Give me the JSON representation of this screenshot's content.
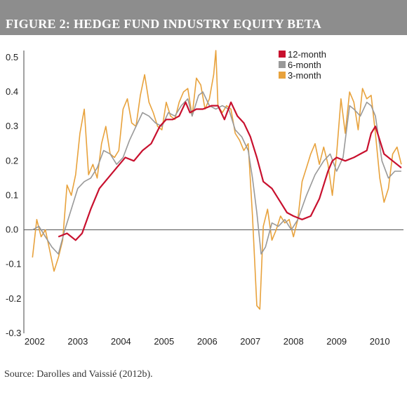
{
  "figure": {
    "title": "FIGURE 2: HEDGE FUND INDUSTRY EQUITY BETA",
    "source": "Source: Darolles and Vaissié (2012b)."
  },
  "chart_data": {
    "type": "line",
    "title": "FIGURE 2: HEDGE FUND INDUSTRY EQUITY BETA",
    "xlabel": "",
    "ylabel": "",
    "xlim": [
      2001.75,
      2010.55
    ],
    "ylim": [
      -0.3,
      0.52
    ],
    "y_ticks": [
      "0.5",
      "0.4",
      "0.3",
      "0.2",
      "0.1",
      "0.0",
      "-0.1",
      "-0.2",
      "-0.3"
    ],
    "y_tick_values": [
      0.5,
      0.4,
      0.3,
      0.2,
      0.1,
      0.0,
      -0.1,
      -0.2,
      -0.3
    ],
    "x_ticks": [
      "2002",
      "2003",
      "2004",
      "2005",
      "2006",
      "2007",
      "2008",
      "2009",
      "2010"
    ],
    "x_tick_values": [
      2002,
      2003,
      2004,
      2005,
      2006,
      2007,
      2008,
      2009,
      2010
    ],
    "zero_line": true,
    "legend_position": "top-right",
    "series": [
      {
        "name": "12-month",
        "color": "#c8102e",
        "x": [
          2002.55,
          2002.75,
          2002.95,
          2003.1,
          2003.3,
          2003.5,
          2003.7,
          2003.9,
          2004.1,
          2004.3,
          2004.5,
          2004.7,
          2004.9,
          2005.05,
          2005.2,
          2005.35,
          2005.5,
          2005.6,
          2005.75,
          2005.9,
          2006.1,
          2006.25,
          2006.4,
          2006.55,
          2006.7,
          2006.85,
          2007.0,
          2007.15,
          2007.3,
          2007.5,
          2007.7,
          2007.85,
          2008.0,
          2008.2,
          2008.4,
          2008.6,
          2008.8,
          2008.9,
          2009.0,
          2009.2,
          2009.4,
          2009.55,
          2009.7,
          2009.8,
          2009.9,
          2010.0,
          2010.1,
          2010.3,
          2010.5
        ],
        "values": [
          -0.02,
          -0.01,
          -0.03,
          -0.01,
          0.06,
          0.12,
          0.15,
          0.18,
          0.21,
          0.2,
          0.23,
          0.25,
          0.3,
          0.32,
          0.32,
          0.33,
          0.37,
          0.34,
          0.35,
          0.35,
          0.36,
          0.36,
          0.32,
          0.37,
          0.33,
          0.31,
          0.27,
          0.21,
          0.14,
          0.12,
          0.08,
          0.05,
          0.04,
          0.03,
          0.04,
          0.09,
          0.17,
          0.2,
          0.21,
          0.2,
          0.21,
          0.22,
          0.23,
          0.28,
          0.3,
          0.26,
          0.22,
          0.2,
          0.18
        ]
      },
      {
        "name": "6-month",
        "color": "#999999",
        "x": [
          2001.95,
          2002.1,
          2002.25,
          2002.4,
          2002.55,
          2002.7,
          2002.85,
          2003.0,
          2003.15,
          2003.3,
          2003.45,
          2003.6,
          2003.75,
          2003.9,
          2004.05,
          2004.2,
          2004.35,
          2004.5,
          2004.65,
          2004.8,
          2004.95,
          2005.1,
          2005.25,
          2005.4,
          2005.55,
          2005.65,
          2005.8,
          2005.9,
          2006.05,
          2006.2,
          2006.35,
          2006.5,
          2006.65,
          2006.8,
          2006.95,
          2007.05,
          2007.15,
          2007.25,
          2007.35,
          2007.5,
          2007.65,
          2007.8,
          2007.95,
          2008.1,
          2008.3,
          2008.5,
          2008.7,
          2008.85,
          2009.0,
          2009.15,
          2009.3,
          2009.4,
          2009.55,
          2009.7,
          2009.8,
          2009.9,
          2010.05,
          2010.2,
          2010.35,
          2010.5
        ],
        "values": [
          0.0,
          0.01,
          -0.02,
          -0.05,
          -0.07,
          0.0,
          0.06,
          0.12,
          0.14,
          0.15,
          0.18,
          0.23,
          0.22,
          0.19,
          0.21,
          0.26,
          0.3,
          0.34,
          0.33,
          0.31,
          0.3,
          0.34,
          0.33,
          0.36,
          0.38,
          0.33,
          0.39,
          0.4,
          0.36,
          0.35,
          0.36,
          0.35,
          0.29,
          0.27,
          0.23,
          0.15,
          0.05,
          -0.07,
          -0.05,
          0.02,
          0.01,
          0.03,
          0.0,
          0.03,
          0.1,
          0.16,
          0.2,
          0.22,
          0.17,
          0.21,
          0.36,
          0.35,
          0.33,
          0.37,
          0.36,
          0.33,
          0.2,
          0.15,
          0.17,
          0.17
        ]
      },
      {
        "name": "3-month",
        "color": "#e8a23c",
        "x": [
          2001.95,
          2002.05,
          2002.15,
          2002.25,
          2002.35,
          2002.45,
          2002.55,
          2002.65,
          2002.75,
          2002.85,
          2002.95,
          2003.05,
          2003.15,
          2003.25,
          2003.35,
          2003.45,
          2003.55,
          2003.65,
          2003.75,
          2003.85,
          2003.95,
          2004.05,
          2004.15,
          2004.25,
          2004.35,
          2004.45,
          2004.55,
          2004.65,
          2004.75,
          2004.85,
          2004.95,
          2005.05,
          2005.15,
          2005.25,
          2005.35,
          2005.45,
          2005.55,
          2005.65,
          2005.75,
          2005.85,
          2005.95,
          2006.05,
          2006.15,
          2006.2,
          2006.25,
          2006.35,
          2006.45,
          2006.55,
          2006.65,
          2006.75,
          2006.85,
          2006.95,
          2007.05,
          2007.15,
          2007.22,
          2007.3,
          2007.4,
          2007.5,
          2007.6,
          2007.7,
          2007.8,
          2007.9,
          2008.0,
          2008.1,
          2008.2,
          2008.3,
          2008.4,
          2008.5,
          2008.6,
          2008.7,
          2008.8,
          2008.9,
          2009.0,
          2009.1,
          2009.2,
          2009.3,
          2009.4,
          2009.5,
          2009.6,
          2009.7,
          2009.8,
          2009.9,
          2010.0,
          2010.1,
          2010.2,
          2010.3,
          2010.4,
          2010.5
        ],
        "values": [
          -0.08,
          0.03,
          -0.02,
          0.0,
          -0.06,
          -0.12,
          -0.08,
          -0.03,
          0.13,
          0.1,
          0.16,
          0.28,
          0.35,
          0.16,
          0.19,
          0.15,
          0.25,
          0.3,
          0.22,
          0.21,
          0.23,
          0.35,
          0.38,
          0.31,
          0.3,
          0.39,
          0.45,
          0.37,
          0.34,
          0.3,
          0.29,
          0.37,
          0.33,
          0.32,
          0.37,
          0.4,
          0.41,
          0.33,
          0.44,
          0.42,
          0.35,
          0.38,
          0.45,
          0.52,
          0.36,
          0.34,
          0.36,
          0.35,
          0.28,
          0.26,
          0.23,
          0.25,
          0.04,
          -0.22,
          -0.23,
          0.01,
          0.06,
          -0.03,
          0.0,
          0.04,
          0.02,
          0.03,
          -0.02,
          0.03,
          0.14,
          0.18,
          0.22,
          0.25,
          0.19,
          0.24,
          0.19,
          0.1,
          0.22,
          0.38,
          0.28,
          0.4,
          0.37,
          0.29,
          0.41,
          0.38,
          0.39,
          0.28,
          0.15,
          0.08,
          0.12,
          0.22,
          0.24,
          0.19
        ]
      }
    ]
  }
}
